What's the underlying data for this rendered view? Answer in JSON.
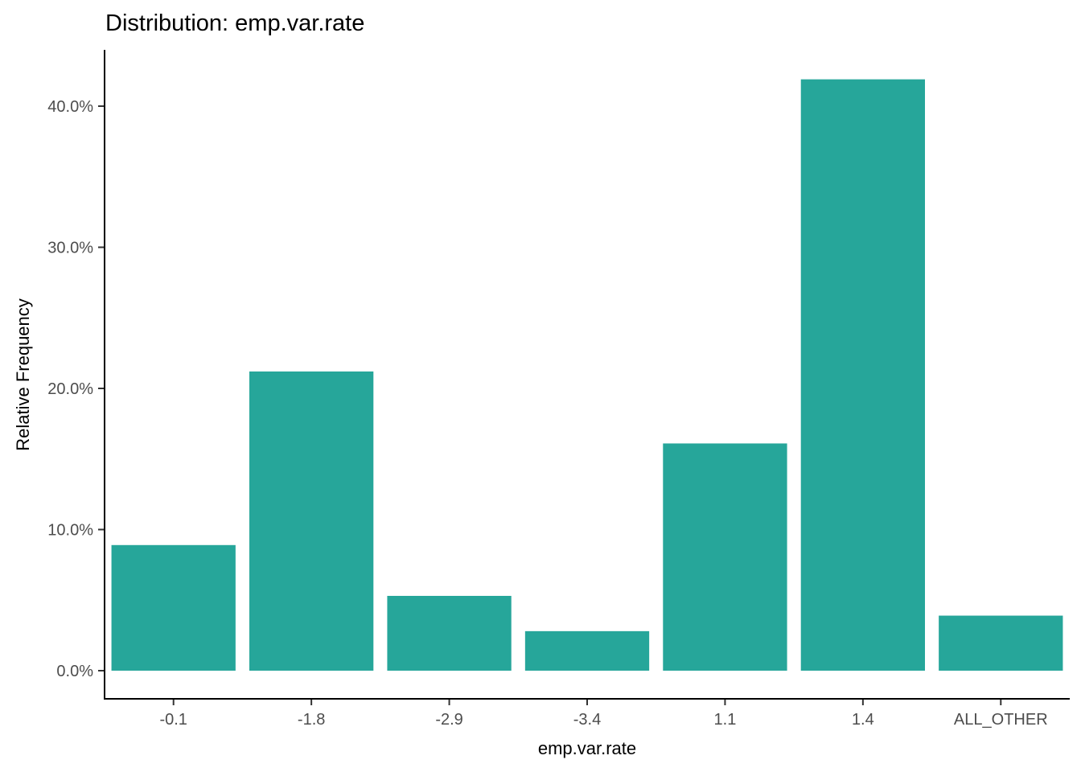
{
  "chart_data": {
    "type": "bar",
    "title": "Distribution: emp.var.rate",
    "xlabel": "emp.var.rate",
    "ylabel": "Relative Frequency",
    "categories": [
      "-0.1",
      "-1.8",
      "-2.9",
      "-3.4",
      "1.1",
      "1.4",
      "ALL_OTHER"
    ],
    "values": [
      8.9,
      21.2,
      5.3,
      2.8,
      16.1,
      41.9,
      3.9
    ],
    "value_unit": "percent",
    "ylim": [
      0,
      42
    ],
    "y_ticks": [
      0,
      10,
      20,
      30,
      40
    ],
    "y_tick_labels": [
      "0.0%",
      "10.0%",
      "20.0%",
      "30.0%",
      "40.0%"
    ],
    "bar_color": "#26A69A",
    "grid": false,
    "legend": "none"
  }
}
